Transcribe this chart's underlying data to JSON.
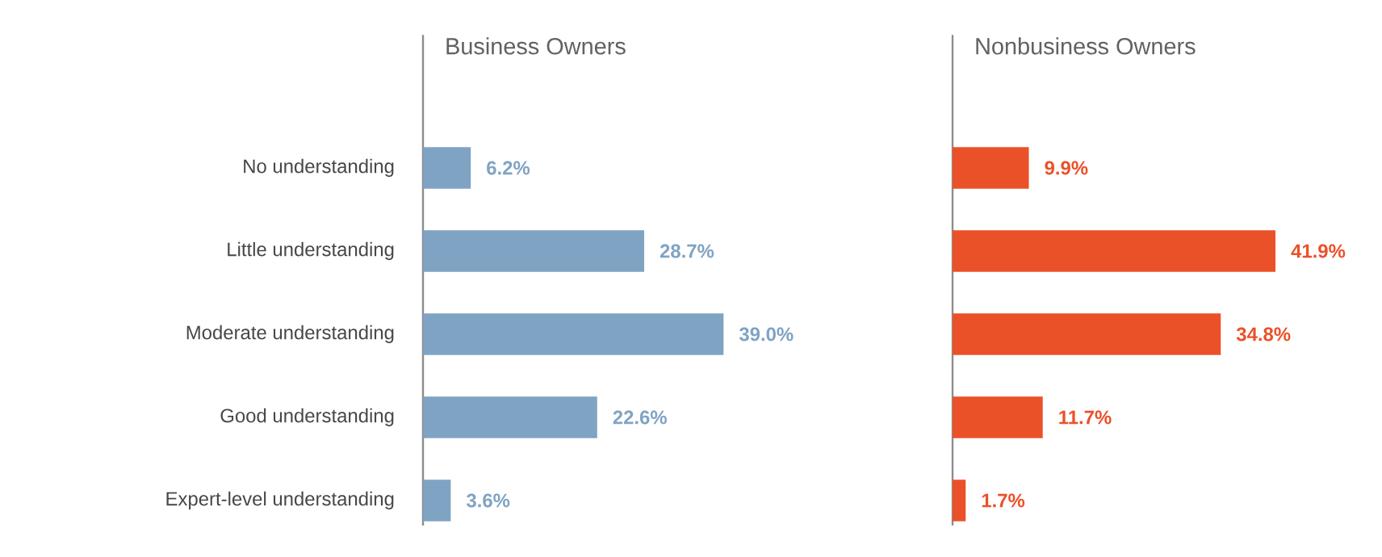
{
  "chart_data": [
    {
      "type": "bar",
      "orientation": "horizontal",
      "title": "Business Owners",
      "tick_labels": "y",
      "categories": [
        "No understanding",
        "Little understanding",
        "Moderate understanding",
        "Good understanding",
        "Expert-level understanding"
      ],
      "values": [
        6.2,
        28.7,
        39.0,
        22.6,
        3.6
      ],
      "color": "#7fa3c3",
      "value_labels": [
        "6.2%",
        "28.7%",
        "39.0%",
        "22.6%",
        "3.6%"
      ]
    },
    {
      "type": "bar",
      "orientation": "horizontal",
      "title": "Nonbusiness Owners",
      "tick_labels": false,
      "categories": [
        null,
        null,
        null,
        null,
        null
      ],
      "values": [
        9.9,
        41.9,
        34.8,
        11.7,
        1.7
      ],
      "color": "#eb5128",
      "value_labels": [
        "9.9%",
        "41.9%",
        "34.8%",
        "11.7%",
        "1.7%"
      ]
    }
  ]
}
